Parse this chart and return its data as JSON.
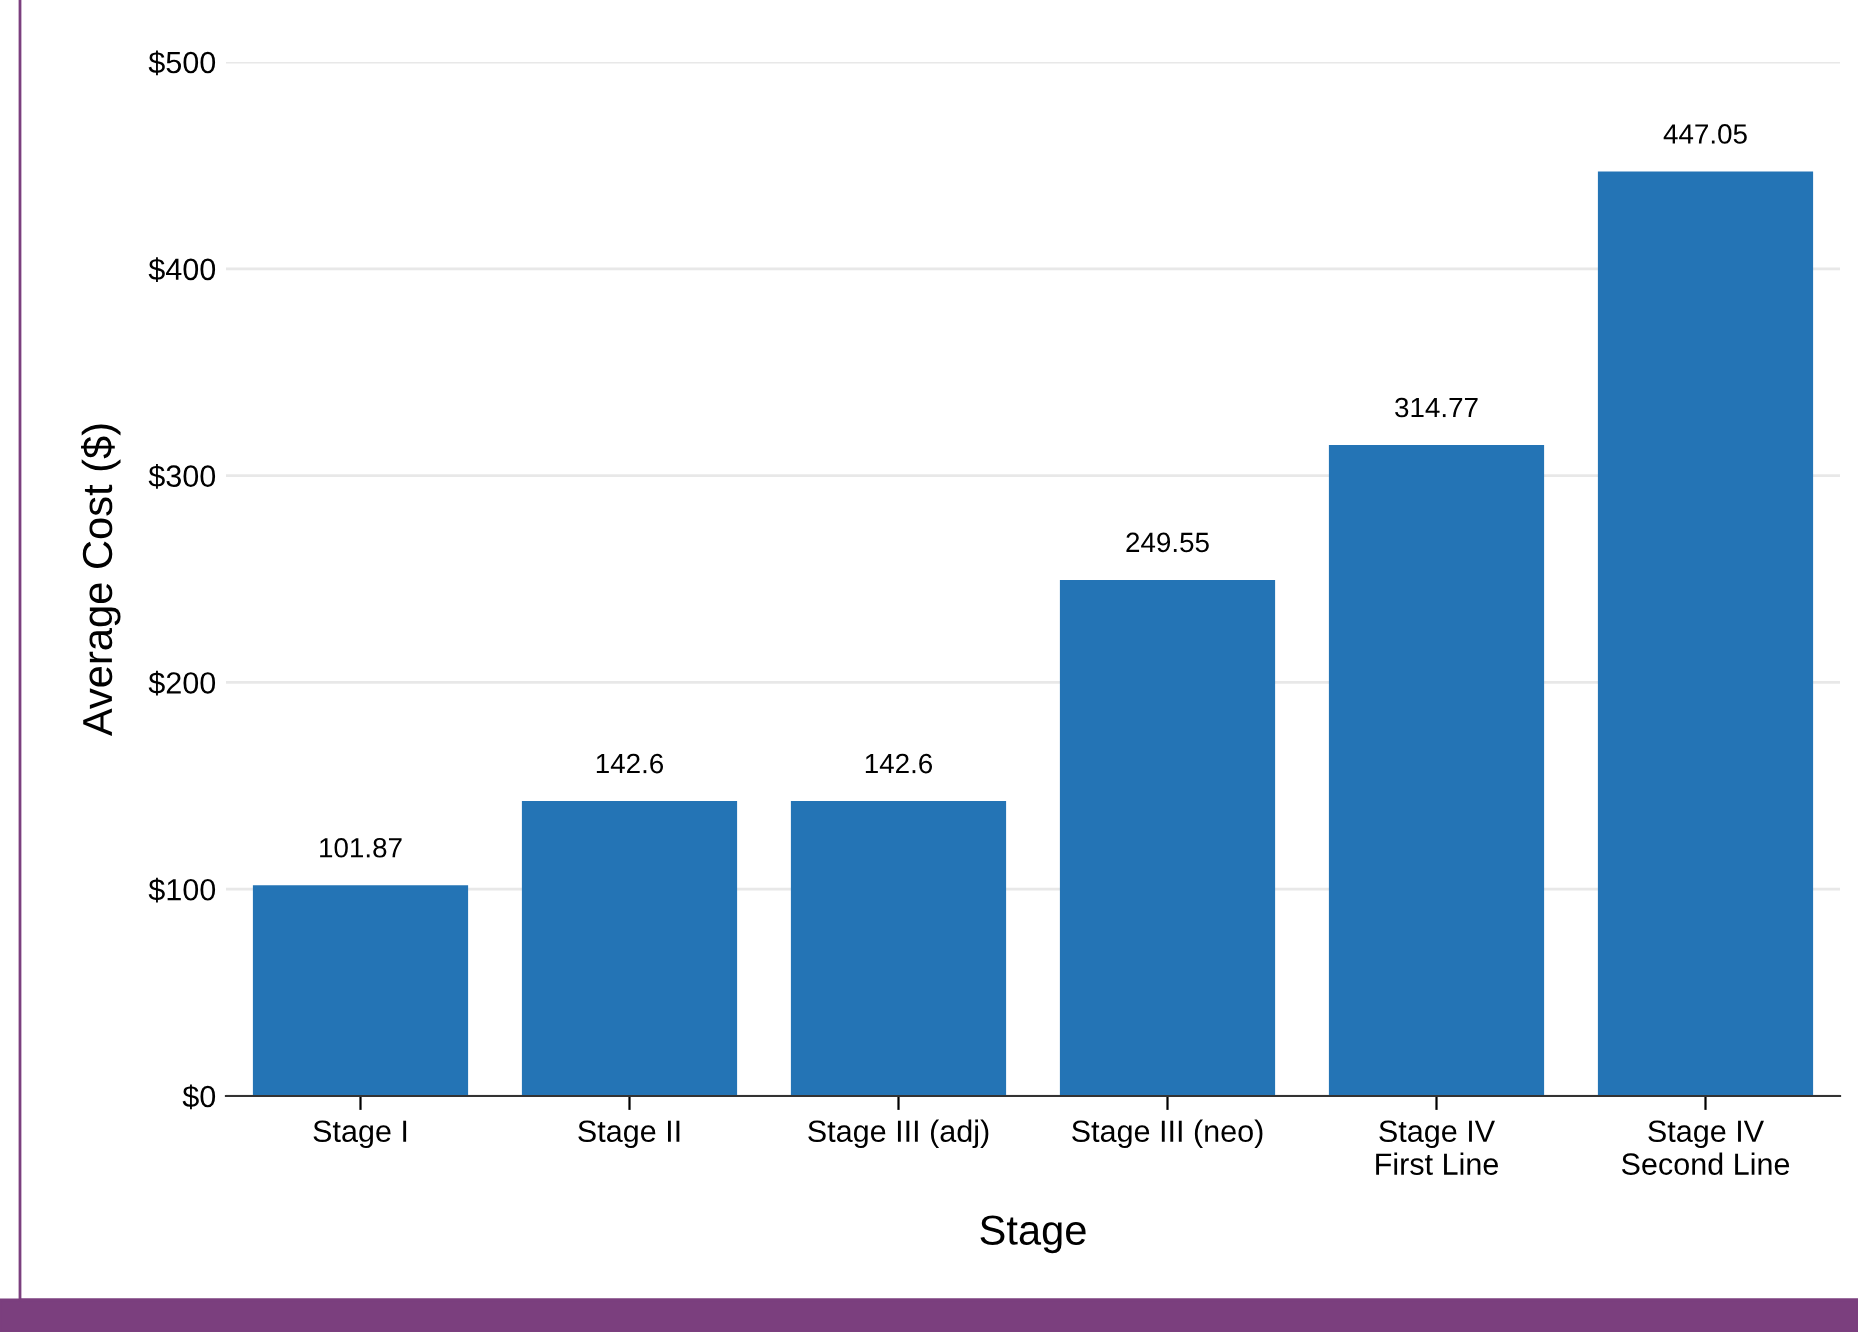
{
  "chart_data": {
    "type": "bar",
    "xlabel": "Stage",
    "ylabel": "Average Cost ($)",
    "categories": [
      "Stage I",
      "Stage II",
      "Stage III (adj)",
      "Stage III (neo)",
      "Stage IV\nFirst Line",
      "Stage IV\nSecond Line"
    ],
    "values": [
      101.87,
      142.6,
      142.6,
      249.55,
      314.77,
      447.05
    ],
    "color": "#2474b5",
    "ylim": [
      0,
      500
    ],
    "yticks": [
      {
        "value": 0,
        "label": "$0"
      },
      {
        "value": 100,
        "label": "$100"
      },
      {
        "value": 200,
        "label": "$200"
      },
      {
        "value": 300,
        "label": "$300"
      },
      {
        "value": 400,
        "label": "$400"
      },
      {
        "value": 500,
        "label": "$500"
      }
    ],
    "grid": "y",
    "data_labels": true
  }
}
